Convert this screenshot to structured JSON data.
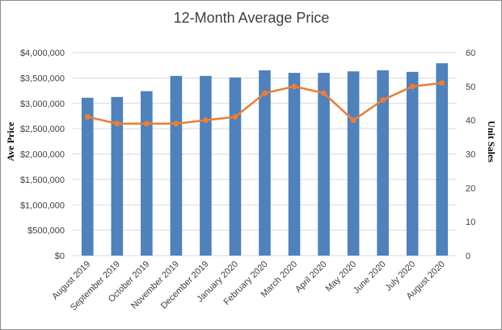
{
  "chart_data": {
    "type": "bar",
    "title": "12-Month Average Price",
    "categories": [
      "August 2019",
      "September 2019",
      "October 2019",
      "November 2019",
      "December 2019",
      "January 2020",
      "February 2020",
      "March 2020",
      "April 2020",
      "May 2020",
      "June 2020",
      "July 2020",
      "August 2020"
    ],
    "series": [
      {
        "type": "bar",
        "axis": "left",
        "color": "#4f81bd",
        "values": [
          3110000,
          3125000,
          3240000,
          3540000,
          3540000,
          3510000,
          3650000,
          3600000,
          3600000,
          3630000,
          3650000,
          3620000,
          3790000
        ]
      },
      {
        "type": "line",
        "axis": "right",
        "color": "#ed7d31",
        "values": [
          41,
          39,
          39,
          39,
          40,
          41,
          48,
          50,
          48,
          40,
          46,
          50,
          51
        ]
      }
    ],
    "ylabel": "Ave Price",
    "y2label": "Unit Sales",
    "ylim": [
      0,
      4000000
    ],
    "y2lim": [
      0,
      60
    ],
    "y_ticks": [
      "$0",
      "$500,000",
      "$1,000,000",
      "$1,500,000",
      "$2,000,000",
      "$2,500,000",
      "$3,000,000",
      "$3,500,000",
      "$4,000,000"
    ],
    "y2_ticks": [
      "0",
      "10",
      "20",
      "30",
      "40",
      "50",
      "60"
    ],
    "grid": true,
    "legend": "none"
  }
}
